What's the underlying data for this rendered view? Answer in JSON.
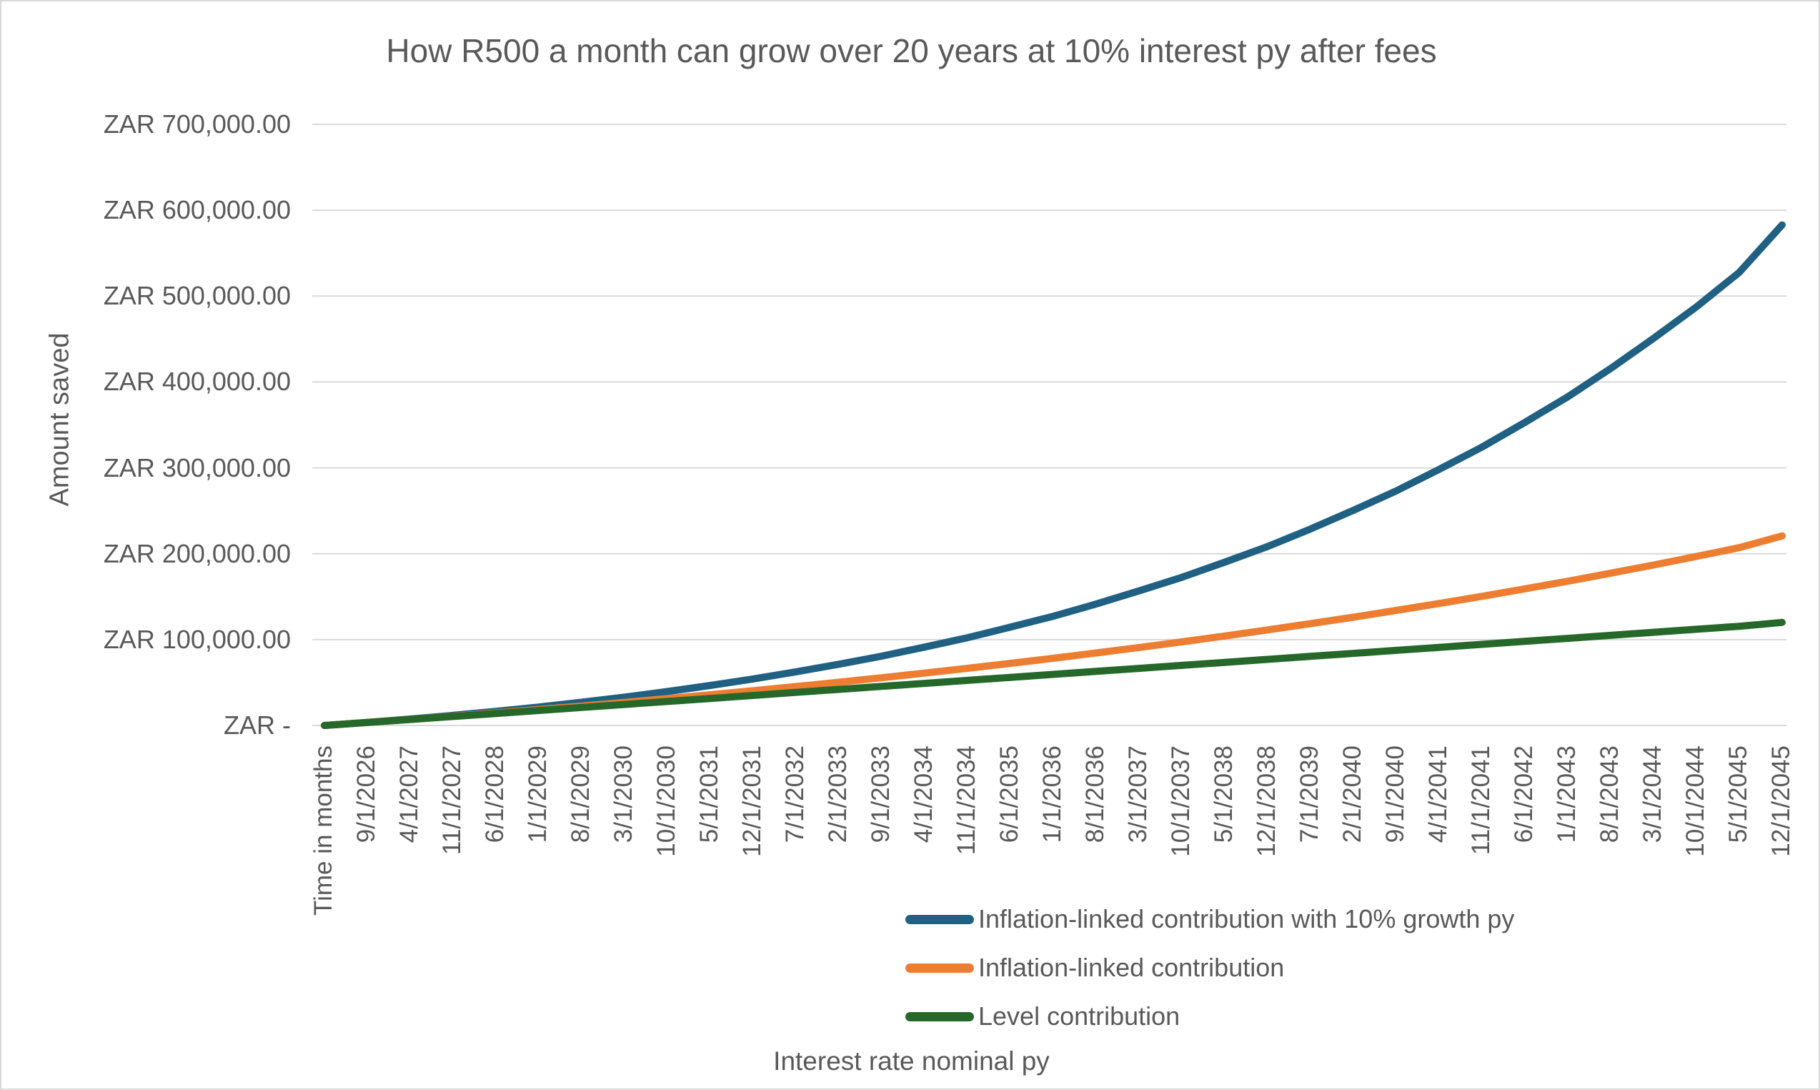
{
  "title": "How R500 a month can grow over 20 years at 10% interest py after fees",
  "y_axis": {
    "title": "Amount saved",
    "tick_labels_bottom_to_top": [
      "ZAR -",
      "ZAR 100,000.00",
      "ZAR 200,000.00",
      "ZAR 300,000.00",
      "ZAR 400,000.00",
      "ZAR 500,000.00",
      "ZAR 600,000.00",
      "ZAR 700,000.00"
    ]
  },
  "x_axis": {
    "title": "Interest rate nominal py"
  },
  "colors": {
    "text": "#595959",
    "gridline": "#d9d9d9",
    "border": "#d9d9d9",
    "series_blue": "#1f6083",
    "series_orange": "#ed7d31",
    "series_green": "#26682a"
  },
  "chart_data": {
    "type": "line",
    "title": "How R500 a month can grow over 20 years at 10% interest py after fees",
    "xlabel": "Interest rate nominal py",
    "ylabel": "Amount saved",
    "ylim": [
      0,
      700000
    ],
    "y_tick_interval": 100000,
    "grid": true,
    "legend_position": "bottom",
    "categories": [
      "Time in months",
      "9/1/2026",
      "4/1/2027",
      "11/1/2027",
      "6/1/2028",
      "1/1/2029",
      "8/1/2029",
      "3/1/2030",
      "10/1/2030",
      "5/1/2031",
      "12/1/2031",
      "7/1/2032",
      "2/1/2033",
      "9/1/2033",
      "4/1/2034",
      "11/1/2034",
      "6/1/2035",
      "1/1/2036",
      "8/1/2036",
      "3/1/2037",
      "10/1/2037",
      "5/1/2038",
      "12/1/2038",
      "7/1/2039",
      "2/1/2040",
      "9/1/2040",
      "4/1/2041",
      "11/1/2041",
      "6/1/2042",
      "1/1/2043",
      "8/1/2043",
      "3/1/2044",
      "10/1/2044",
      "5/1/2045",
      "12/1/2045"
    ],
    "series": [
      {
        "name": "Inflation-linked contribution with 10% growth py",
        "color": "#1f6083",
        "values": [
          0,
          3613,
          7503,
          11782,
          16446,
          21488,
          27043,
          32999,
          39535,
          46577,
          54197,
          62481,
          71343,
          80735,
          91324,
          102218,
          114539,
          127147,
          141445,
          156707,
          172550,
          190203,
          208435,
          228808,
          250525,
          273216,
          298219,
          324221,
          352948,
          382717,
          415670,
          450760,
          487450,
          527632,
          583000
        ]
      },
      {
        "name": "Inflation-linked contribution",
        "color": "#ed7d31",
        "values": [
          0,
          3500,
          7060,
          10770,
          14607,
          18540,
          22675,
          26879,
          31298,
          35830,
          40514,
          45398,
          50363,
          55626,
          60979,
          66557,
          72327,
          78240,
          84457,
          90779,
          97423,
          104238,
          111281,
          118625,
          126091,
          134004,
          142053,
          150441,
          159116,
          168007,
          177355,
          186861,
          196851,
          207098,
          220714
        ]
      },
      {
        "name": "Level contribution",
        "color": "#26682a",
        "values": [
          0,
          3500,
          7000,
          10500,
          14000,
          17500,
          21000,
          24500,
          28000,
          31500,
          35000,
          38500,
          42000,
          45500,
          49000,
          52500,
          56000,
          59500,
          63000,
          66500,
          70000,
          73500,
          77000,
          80500,
          84000,
          87500,
          91000,
          94500,
          98000,
          101500,
          105000,
          108500,
          112000,
          115500,
          120000
        ]
      }
    ]
  }
}
